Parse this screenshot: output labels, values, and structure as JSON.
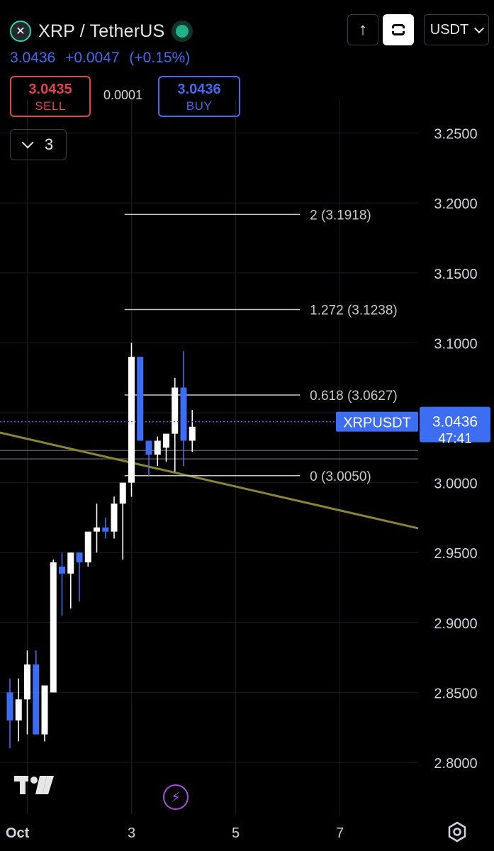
{
  "header": {
    "symbol_title": "XRP / TetherUS",
    "logo_glyph": "✕",
    "last_price": "3.0436",
    "change": "+0.0047",
    "change_pct": "(+0.15%)",
    "sell_price": "3.0435",
    "sell_label": "SELL",
    "spread": "0.0001",
    "buy_price": "3.0436",
    "buy_label": "BUY",
    "indicators_count": "3",
    "currency": "USDT",
    "up_arrow": "↑",
    "flash_glyph": "⚡"
  },
  "colors": {
    "background": "#000000",
    "up_candle": "#ffffff",
    "down_candle": "#3d6df2",
    "trendline": "#8b8432",
    "accent_blue": "#3d6df2",
    "sell_red": "#e2424e",
    "grid": "#1a1c22",
    "fib": "#c8c8c8"
  },
  "chart_data": {
    "type": "candlestick",
    "symbol": "XRPUSDT",
    "ylim": [
      2.76,
      3.275
    ],
    "yticks": [
      "3.2500",
      "3.2000",
      "3.1500",
      "3.1000",
      "3.0500",
      "3.0000",
      "2.9500",
      "2.9000",
      "2.8500",
      "2.8000"
    ],
    "ytick_values": [
      3.25,
      3.2,
      3.15,
      3.1,
      3.05,
      3.0,
      2.95,
      2.9,
      2.85,
      2.8
    ],
    "xticks": [
      {
        "label": "Oct",
        "slot": 2
      },
      {
        "label": "3",
        "slot": 14
      },
      {
        "label": "5",
        "slot": 26
      },
      {
        "label": "7",
        "slot": 38
      }
    ],
    "slots_total": 48,
    "grid": true,
    "candles": [
      {
        "o": 2.85,
        "h": 2.86,
        "l": 2.81,
        "c": 2.83
      },
      {
        "o": 2.83,
        "h": 2.86,
        "l": 2.815,
        "c": 2.845
      },
      {
        "o": 2.845,
        "h": 2.88,
        "l": 2.82,
        "c": 2.87
      },
      {
        "o": 2.87,
        "h": 2.88,
        "l": 2.82,
        "c": 2.82
      },
      {
        "o": 2.82,
        "h": 2.855,
        "l": 2.815,
        "c": 2.855
      },
      {
        "o": 2.85,
        "h": 2.945,
        "l": 2.85,
        "c": 2.943
      },
      {
        "o": 2.94,
        "h": 2.95,
        "l": 2.905,
        "c": 2.935
      },
      {
        "o": 2.935,
        "h": 2.95,
        "l": 2.91,
        "c": 2.95
      },
      {
        "o": 2.95,
        "h": 2.95,
        "l": 2.915,
        "c": 2.943
      },
      {
        "o": 2.943,
        "h": 2.965,
        "l": 2.94,
        "c": 2.965
      },
      {
        "o": 2.965,
        "h": 2.985,
        "l": 2.95,
        "c": 2.968
      },
      {
        "o": 2.968,
        "h": 2.975,
        "l": 2.96,
        "c": 2.965
      },
      {
        "o": 2.965,
        "h": 2.99,
        "l": 2.96,
        "c": 2.985
      },
      {
        "o": 2.985,
        "h": 3.0,
        "l": 2.945,
        "c": 3.0
      },
      {
        "o": 3.0,
        "h": 3.1,
        "l": 2.99,
        "c": 3.09
      },
      {
        "o": 3.09,
        "h": 3.09,
        "l": 3.03,
        "c": 3.03
      },
      {
        "o": 3.03,
        "h": 3.03,
        "l": 3.005,
        "c": 3.02
      },
      {
        "o": 3.02,
        "h": 3.033,
        "l": 3.012,
        "c": 3.03
      },
      {
        "o": 3.025,
        "h": 3.035,
        "l": 3.015,
        "c": 3.035
      },
      {
        "o": 3.035,
        "h": 3.075,
        "l": 3.008,
        "c": 3.068
      },
      {
        "o": 3.068,
        "h": 3.094,
        "l": 3.012,
        "c": 3.03
      },
      {
        "o": 3.03,
        "h": 3.052,
        "l": 3.022,
        "c": 3.04
      }
    ],
    "candle_first_slot": 0,
    "fib_levels": [
      {
        "label": "2 (3.1918)",
        "value": 3.1918
      },
      {
        "label": "1.272 (3.1238)",
        "value": 3.1238
      },
      {
        "label": "0.618 (3.0627)",
        "value": 3.0627
      },
      {
        "label": "0 (3.0050)",
        "value": 3.005
      }
    ],
    "fib_start_slot": 13.2,
    "fib_end_slot": 33.4,
    "horizontal_lines": [
      3.023,
      3.017
    ],
    "trendline": [
      {
        "slot": -2,
        "value": 3.037
      },
      {
        "slot": 48,
        "value": 2.966
      }
    ],
    "current_price": {
      "value": 3.0436,
      "label": "XRPUSDT",
      "price": "3.0436",
      "countdown": "47:41"
    }
  }
}
